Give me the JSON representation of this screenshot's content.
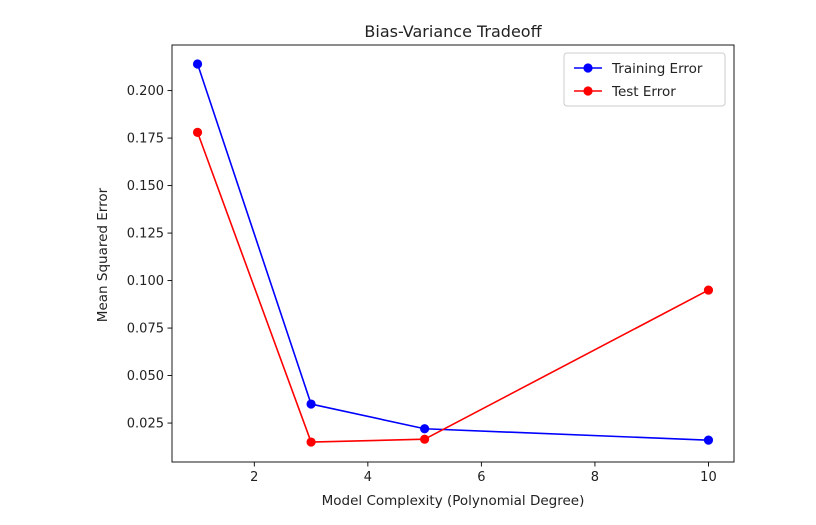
{
  "chart_data": {
    "type": "line",
    "title": "Bias-Variance Tradeoff",
    "xlabel": "Model Complexity (Polynomial Degree)",
    "ylabel": "Mean Squared Error",
    "x": [
      1,
      3,
      5,
      10
    ],
    "xlim": [
      0.55,
      10.45
    ],
    "ylim": [
      0.0045,
      0.224
    ],
    "xticks": [
      2,
      4,
      6,
      8,
      10
    ],
    "xtick_labels": [
      "2",
      "4",
      "6",
      "8",
      "10"
    ],
    "yticks": [
      0.025,
      0.05,
      0.075,
      0.1,
      0.125,
      0.15,
      0.175,
      0.2
    ],
    "ytick_labels": [
      "0.025",
      "0.050",
      "0.075",
      "0.100",
      "0.125",
      "0.150",
      "0.175",
      "0.200"
    ],
    "grid": false,
    "legend_position": "top-right",
    "series": [
      {
        "name": "Training Error",
        "color": "#0000ff",
        "marker": "circle",
        "values": [
          0.214,
          0.035,
          0.022,
          0.016
        ]
      },
      {
        "name": "Test Error",
        "color": "#ff0000",
        "marker": "circle",
        "values": [
          0.178,
          0.015,
          0.0165,
          0.095
        ]
      }
    ]
  }
}
